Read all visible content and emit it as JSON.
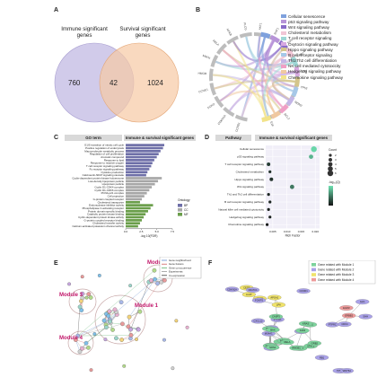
{
  "panel_letters": {
    "a": "A",
    "b": "B",
    "c": "C",
    "d": "D",
    "e": "E",
    "f": "F"
  },
  "panel_a": {
    "left_label_1": "Immune significant",
    "left_label_2": "genes",
    "right_label_1": "Survival significant",
    "right_label_2": "genes",
    "left_only": "760",
    "overlap": "42",
    "right_only": "1024",
    "left_color": "#c9c2e6",
    "right_color": "#f6c9a4"
  },
  "panel_b": {
    "legend": [
      {
        "label": "Cellular senescence",
        "color": "#7fa1dd"
      },
      {
        "label": "p53 signaling pathway",
        "color": "#b794d8"
      },
      {
        "label": "Wnt signaling pathway",
        "color": "#8a6cc8"
      },
      {
        "label": "Cholesterol metabolism",
        "color": "#f1c6d6"
      },
      {
        "label": "T cell receptor signaling",
        "color": "#9fd7d6"
      },
      {
        "label": "Oxytocin signaling pathway",
        "color": "#d7a9e0"
      },
      {
        "label": "Hippo signaling pathway",
        "color": "#d4c58b"
      },
      {
        "label": "B cell receptor signaling",
        "color": "#a6c8e8"
      },
      {
        "label": "Th1/Th2 cell differentiation",
        "color": "#c3b6e6"
      },
      {
        "label": "NK cell mediated cytotoxicity",
        "color": "#ef9fc5"
      },
      {
        "label": "Hedgehog signaling pathway",
        "color": "#f0c8a0"
      },
      {
        "label": "Chemokine signaling pathway",
        "color": "#f2e38a"
      }
    ],
    "gene_labels": [
      "CCND1",
      "CDKN1A",
      "FOXO",
      "CCNE1",
      "HMGB",
      "MAPK",
      "RELA",
      "NFKB",
      "PLCG",
      "AKT1",
      "RAF1",
      "SOS",
      "GRB2",
      "CD4",
      "TP53",
      "MDM2",
      "BCL2",
      "E2F"
    ]
  },
  "panel_c": {
    "header_left": "GO term",
    "header_right": "Immune & survival significant genes",
    "terms": [
      {
        "label": "G1/S transition of mitotic cell cycle",
        "value": 6.2,
        "group": "BP"
      },
      {
        "label": "Positive regulation of endocytosis",
        "value": 6.0,
        "group": "BP"
      },
      {
        "label": "Macromolecule metabolic process",
        "value": 5.6,
        "group": "BP"
      },
      {
        "label": "Regulation of cell proliferation",
        "value": 5.3,
        "group": "BP"
      },
      {
        "label": "Aromatic compound",
        "value": 5.0,
        "group": "BP"
      },
      {
        "label": "Response to lipid",
        "value": 4.6,
        "group": "BP"
      },
      {
        "label": "Response to reactive oxygen",
        "value": 4.3,
        "group": "BP"
      },
      {
        "label": "T cell receptor signaling pathway",
        "value": 4.1,
        "group": "BP"
      },
      {
        "label": "Fc receptor signaling pathway",
        "value": 3.8,
        "group": "BP"
      },
      {
        "label": "Cytokine production",
        "value": 3.5,
        "group": "BP"
      },
      {
        "label": "Calcineurin-NFAT signaling cascade",
        "value": 3.3,
        "group": "BP"
      },
      {
        "label": "Cyclin-dependent protein kinase holoenzyme",
        "value": 5.8,
        "group": "CC"
      },
      {
        "label": "Low-density lipoprotein particle",
        "value": 5.2,
        "group": "CC"
      },
      {
        "label": "Lipoprotein particle",
        "value": 4.7,
        "group": "CC"
      },
      {
        "label": "Cyclin D1-CDK4 complex",
        "value": 4.2,
        "group": "CC"
      },
      {
        "label": "Cyclin D1-CDK6 complex",
        "value": 3.8,
        "group": "CC"
      },
      {
        "label": "PCNA-p21 complex",
        "value": 3.4,
        "group": "CC"
      },
      {
        "label": "Cell projection",
        "value": 3.0,
        "group": "CC"
      },
      {
        "label": "G-protein coupled receptor",
        "value": 2.6,
        "group": "CC"
      },
      {
        "label": "Cholesterol transporter",
        "value": 2.3,
        "group": "MF"
      },
      {
        "label": "Endonuclease inhibitor activity",
        "value": 4.4,
        "group": "MF"
      },
      {
        "label": "Phospholipase C-activating receptor",
        "value": 4.0,
        "group": "MF"
      },
      {
        "label": "Protein domain specific binding",
        "value": 3.6,
        "group": "MF"
      },
      {
        "label": "Catabolic protein kinase binding",
        "value": 3.2,
        "group": "MF"
      },
      {
        "label": "Cyclin-dependent protein kinase activity",
        "value": 2.9,
        "group": "MF"
      },
      {
        "label": "G-protein coupled receptor binding",
        "value": 2.6,
        "group": "MF"
      },
      {
        "label": "Cholesterol transfer activity",
        "value": 2.3,
        "group": "MF"
      },
      {
        "label": "Calcium-activated potassium channel activity",
        "value": 2.0,
        "group": "MF"
      }
    ],
    "ontology_title": "Ontology",
    "ontology": [
      {
        "label": "BP",
        "color": "#6e6fa8"
      },
      {
        "label": "CC",
        "color": "#a7a7a7"
      },
      {
        "label": "MF",
        "color": "#6a9e4a"
      }
    ],
    "x_ticks": [
      "0.0",
      "2.5",
      "5.0",
      "7.5"
    ],
    "x_label": "-log 10(FDR)"
  },
  "panel_d": {
    "header_left": "Pathway",
    "header_right": "Immune & survival significant genes",
    "pathways": [
      {
        "label": "Cellular senescence",
        "x": 0.0195,
        "count": 6,
        "q": 0.02
      },
      {
        "label": "p53 signaling pathway",
        "x": 0.0185,
        "count": 4,
        "q": 0.08
      },
      {
        "label": "T cell receptor signaling pathway",
        "x": 0.0035,
        "count": 3,
        "q": 0.28
      },
      {
        "label": "Cholesterol metabolism",
        "x": 0.004,
        "count": 2,
        "q": 0.3
      },
      {
        "label": "Hippo signaling pathway",
        "x": 0.0045,
        "count": 3,
        "q": 0.3
      },
      {
        "label": "Wnt signaling pathway",
        "x": 0.0118,
        "count": 4,
        "q": 0.18
      },
      {
        "label": "Th1 and Th2 cell differentiation",
        "x": 0.0035,
        "count": 2,
        "q": 0.32
      },
      {
        "label": "B cell receptor signaling pathway",
        "x": 0.004,
        "count": 2,
        "q": 0.32
      },
      {
        "label": "Natural killer cell mediated cytotoxicity",
        "x": 0.0035,
        "count": 2,
        "q": 0.33
      },
      {
        "label": "Hedgehog signaling pathway",
        "x": 0.004,
        "count": 2,
        "q": 0.33
      },
      {
        "label": "Chemokine signaling pathway",
        "x": 0.003,
        "count": 2,
        "q": 0.34
      }
    ],
    "x_ticks": [
      "0.005",
      "0.010",
      "0.015",
      "0.020"
    ],
    "x_label": "Rich Factor",
    "count_title": "Count",
    "count_values": [
      "2",
      "3",
      "4",
      "5",
      "6"
    ],
    "q_title": "-log₁₀(Q)"
  },
  "panel_e": {
    "module_labels": [
      "Module 1",
      "Module 2",
      "Module 3",
      "Module 4"
    ],
    "module_color": "#c2186b",
    "legend": [
      "Gene neighborhood",
      "Gene fusions",
      "Gene co-occurrence",
      "Experiments",
      "Co-expression"
    ]
  },
  "panel_f": {
    "legend": [
      {
        "label": "Gene related with Module 1",
        "color": "#7cd39c"
      },
      {
        "label": "Gene related with Module 2",
        "color": "#a9a1e8"
      },
      {
        "label": "Gene related with Module 3",
        "color": "#f0e36a"
      },
      {
        "label": "Gene related with Module 4",
        "color": "#ee9a9a"
      }
    ],
    "genes": [
      "APOB",
      "LCAT",
      "CETP",
      "APOA1",
      "LPA",
      "NFATC1",
      "FOXP3",
      "MS4A1",
      "CD19",
      "PTPRC",
      "CDK4",
      "CCND1",
      "CDKN1A",
      "TP53",
      "MDM2",
      "RB1",
      "E2F1",
      "SHH",
      "GLI1",
      "PTCH1",
      "WNT5A",
      "CXCL12",
      "CCR7",
      "IL6",
      "STAT3",
      "JAK2",
      "HMGB1",
      "MAPK1",
      "AKT1",
      "PIK3CA",
      "NFKB1",
      "RELA",
      "SOS1",
      "GRB2",
      "KRAS",
      "BCL2",
      "BAX",
      "CASP3",
      "EGFR",
      "ERBB2"
    ]
  }
}
